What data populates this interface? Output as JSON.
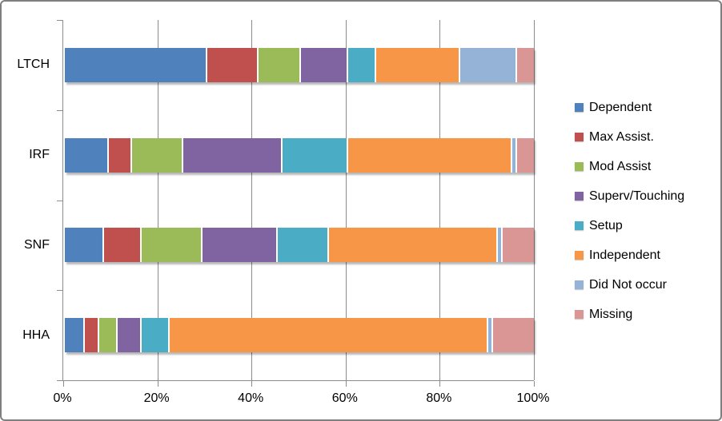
{
  "chart_data": {
    "type": "bar",
    "variant": "horizontal-stacked",
    "title": "",
    "xlabel": "",
    "ylabel": "",
    "categories": [
      "LTCH",
      "IRF",
      "SNF",
      "HHA"
    ],
    "series": [
      {
        "name": "Dependent",
        "color": "#4F81BD",
        "values": [
          30,
          9,
          8,
          4
        ]
      },
      {
        "name": "Max Assist.",
        "color": "#C0504D",
        "values": [
          11,
          5,
          8,
          3
        ]
      },
      {
        "name": "Mod Assist",
        "color": "#9BBB59",
        "values": [
          9,
          11,
          13,
          4
        ]
      },
      {
        "name": "Superv/Touching",
        "color": "#8064A2",
        "values": [
          10,
          21,
          16,
          5
        ]
      },
      {
        "name": "Setup",
        "color": "#4BACC6",
        "values": [
          6,
          14,
          11,
          6
        ]
      },
      {
        "name": "Independent",
        "color": "#F79646",
        "values": [
          18,
          35,
          36,
          68
        ]
      },
      {
        "name": "Did Not occur",
        "color": "#95B3D7",
        "values": [
          12,
          1,
          1,
          1
        ]
      },
      {
        "name": "Missing",
        "color": "#D99694",
        "values": [
          4,
          4,
          7,
          9
        ]
      }
    ],
    "x_ticks": [
      "0%",
      "20%",
      "40%",
      "60%",
      "80%",
      "100%"
    ],
    "xlim": [
      0,
      100
    ],
    "grid": true,
    "legend_position": "right"
  },
  "style_colors": {
    "frame_border": "#7F7F7F",
    "axis_and_grid": "#8C8C8C",
    "text": "#000000",
    "background": "#FFFFFF"
  }
}
